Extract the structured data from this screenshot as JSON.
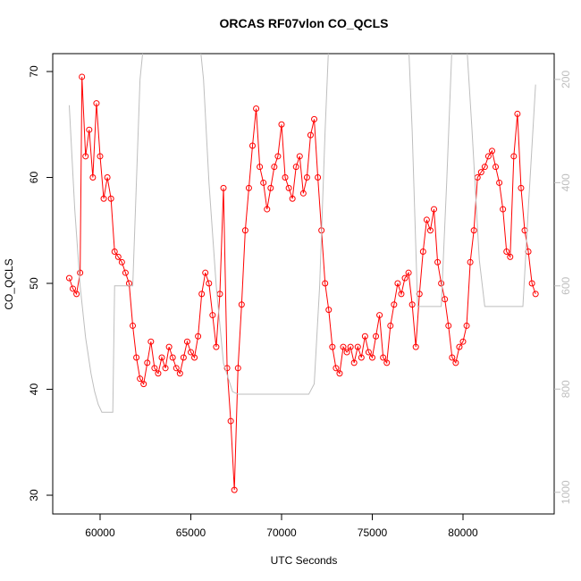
{
  "chart_data": {
    "type": "line",
    "title": "ORCAS RF07vlon CO_QCLS",
    "x_label": "UTC Seconds",
    "y_label": "CO_QCLS",
    "xlim": [
      57390,
      85025
    ],
    "ylim": [
      28.23,
      71.69
    ],
    "y2lim": [
      1042,
      150
    ],
    "xticks": [
      60000,
      65000,
      70000,
      75000,
      80000
    ],
    "yticks": [
      30,
      40,
      50,
      60,
      70
    ],
    "y2ticks": [
      200,
      400,
      600,
      800,
      1000
    ],
    "series": [
      {
        "color": "#ff0000",
        "markers": true,
        "x": [
          58300,
          58500,
          58700,
          58900,
          59000,
          59200,
          59400,
          59600,
          59800,
          60000,
          60200,
          60400,
          60600,
          60800,
          61000,
          61200,
          61400,
          61600,
          61800,
          62000,
          62200,
          62400,
          62600,
          62800,
          63000,
          63200,
          63400,
          63600,
          63800,
          64000,
          64200,
          64400,
          64600,
          64800,
          65000,
          65200,
          65400,
          65600,
          65800,
          66000,
          66200,
          66400,
          66600,
          66800,
          67000,
          67200,
          67400,
          67600,
          67800,
          68000,
          68200,
          68400,
          68600,
          68800,
          69000,
          69200,
          69400,
          69600,
          69800,
          70000,
          70200,
          70400,
          70600,
          70800,
          71000,
          71200,
          71400,
          71600,
          71800,
          72000,
          72200,
          72400,
          72600,
          72800,
          73000,
          73200,
          73400,
          73600,
          73800,
          74000,
          74200,
          74400,
          74600,
          74800,
          75000,
          75200,
          75400,
          75600,
          75800,
          76000,
          76200,
          76400,
          76600,
          76800,
          77000,
          77200,
          77400,
          77600,
          77800,
          78000,
          78200,
          78400,
          78600,
          78800,
          79000,
          79200,
          79400,
          79600,
          79800,
          80000,
          80200,
          80400,
          80600,
          80800,
          81000,
          81200,
          81400,
          81600,
          81800,
          82000,
          82200,
          82400,
          82600,
          82800,
          83000,
          83200,
          83400,
          83600,
          83800,
          84000
        ],
        "values": [
          50.5,
          49.5,
          49,
          51,
          69.5,
          62,
          64.5,
          60,
          67,
          62,
          58,
          60,
          58,
          53,
          52.5,
          52,
          51,
          50,
          46,
          43,
          41,
          40.5,
          42.5,
          44.5,
          42,
          41.5,
          43,
          42,
          44,
          43,
          42,
          41.5,
          43,
          44.5,
          43.5,
          43,
          45,
          49,
          51,
          50,
          47,
          44,
          49,
          59,
          42,
          37,
          30.5,
          42,
          48,
          55,
          59,
          63,
          66.5,
          61,
          59.5,
          57,
          59,
          61,
          62,
          65,
          60,
          59,
          58,
          61,
          62,
          58.5,
          60,
          64,
          65.5,
          60,
          55,
          50,
          47.5,
          44,
          42,
          41.5,
          44,
          43.5,
          44,
          42.5,
          44,
          43,
          45,
          43.5,
          43,
          45,
          47,
          43,
          42.5,
          46,
          48,
          50,
          49,
          50.5,
          51,
          48,
          44,
          49,
          53,
          56,
          55,
          57,
          52,
          50,
          48.5,
          46,
          43,
          42.5,
          44,
          44.5,
          46,
          52,
          55,
          60,
          60.5,
          61,
          62,
          62.5,
          61,
          59.5,
          57,
          53,
          52.5,
          62,
          66,
          59,
          55,
          53,
          50,
          49
        ]
      },
      {
        "color": "#bebebe",
        "axis": "y2",
        "x": [
          58300,
          58600,
          58900,
          59200,
          59500,
          59700,
          59900,
          60100,
          60700,
          60800,
          61800,
          62000,
          62200,
          62400,
          65500,
          65700,
          66000,
          66400,
          66800,
          67300,
          67600,
          71500,
          71800,
          72100,
          72400,
          72600,
          77000,
          77200,
          77500,
          78800,
          79100,
          79400,
          80200,
          80500,
          80900,
          81200,
          83300,
          83600,
          84000
        ],
        "values": [
          250,
          450,
          600,
          700,
          770,
          805,
          830,
          845,
          845,
          600,
          600,
          400,
          200,
          130,
          130,
          200,
          400,
          600,
          750,
          805,
          810,
          810,
          790,
          600,
          300,
          130,
          130,
          300,
          640,
          640,
          400,
          130,
          130,
          300,
          550,
          640,
          640,
          450,
          210
        ]
      }
    ]
  }
}
